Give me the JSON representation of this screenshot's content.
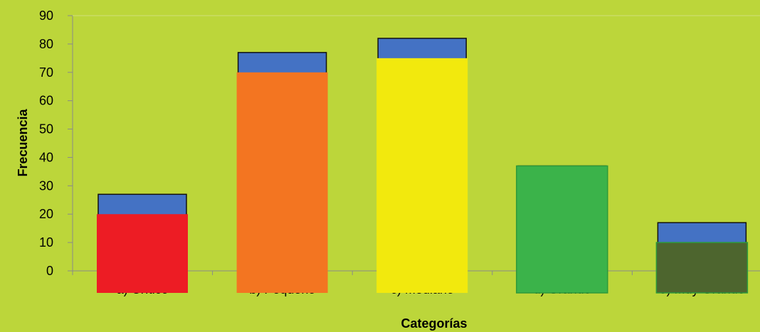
{
  "chart_data": {
    "type": "bar",
    "title": "",
    "xlabel": "Categorías",
    "ylabel": "Frecuencia",
    "ylim": [
      0,
      90
    ],
    "yticks": [
      0,
      10,
      20,
      30,
      40,
      50,
      60,
      70,
      80,
      90
    ],
    "grid": false,
    "background_color": "#bcd63a",
    "categories": [
      "a) Crítico",
      "b) Pequeño",
      "c) Mediano",
      "d) Grande",
      "e) Muy Grande"
    ],
    "series": [
      {
        "values": [
          27,
          77,
          82,
          37,
          17
        ],
        "color": "#4472c4"
      },
      {
        "values": [
          20,
          70,
          75,
          37,
          10
        ],
        "colors": [
          "#ed1c24",
          "#f37521",
          "#f2e90d",
          "#3bb34a",
          "#4d652e"
        ]
      }
    ]
  }
}
